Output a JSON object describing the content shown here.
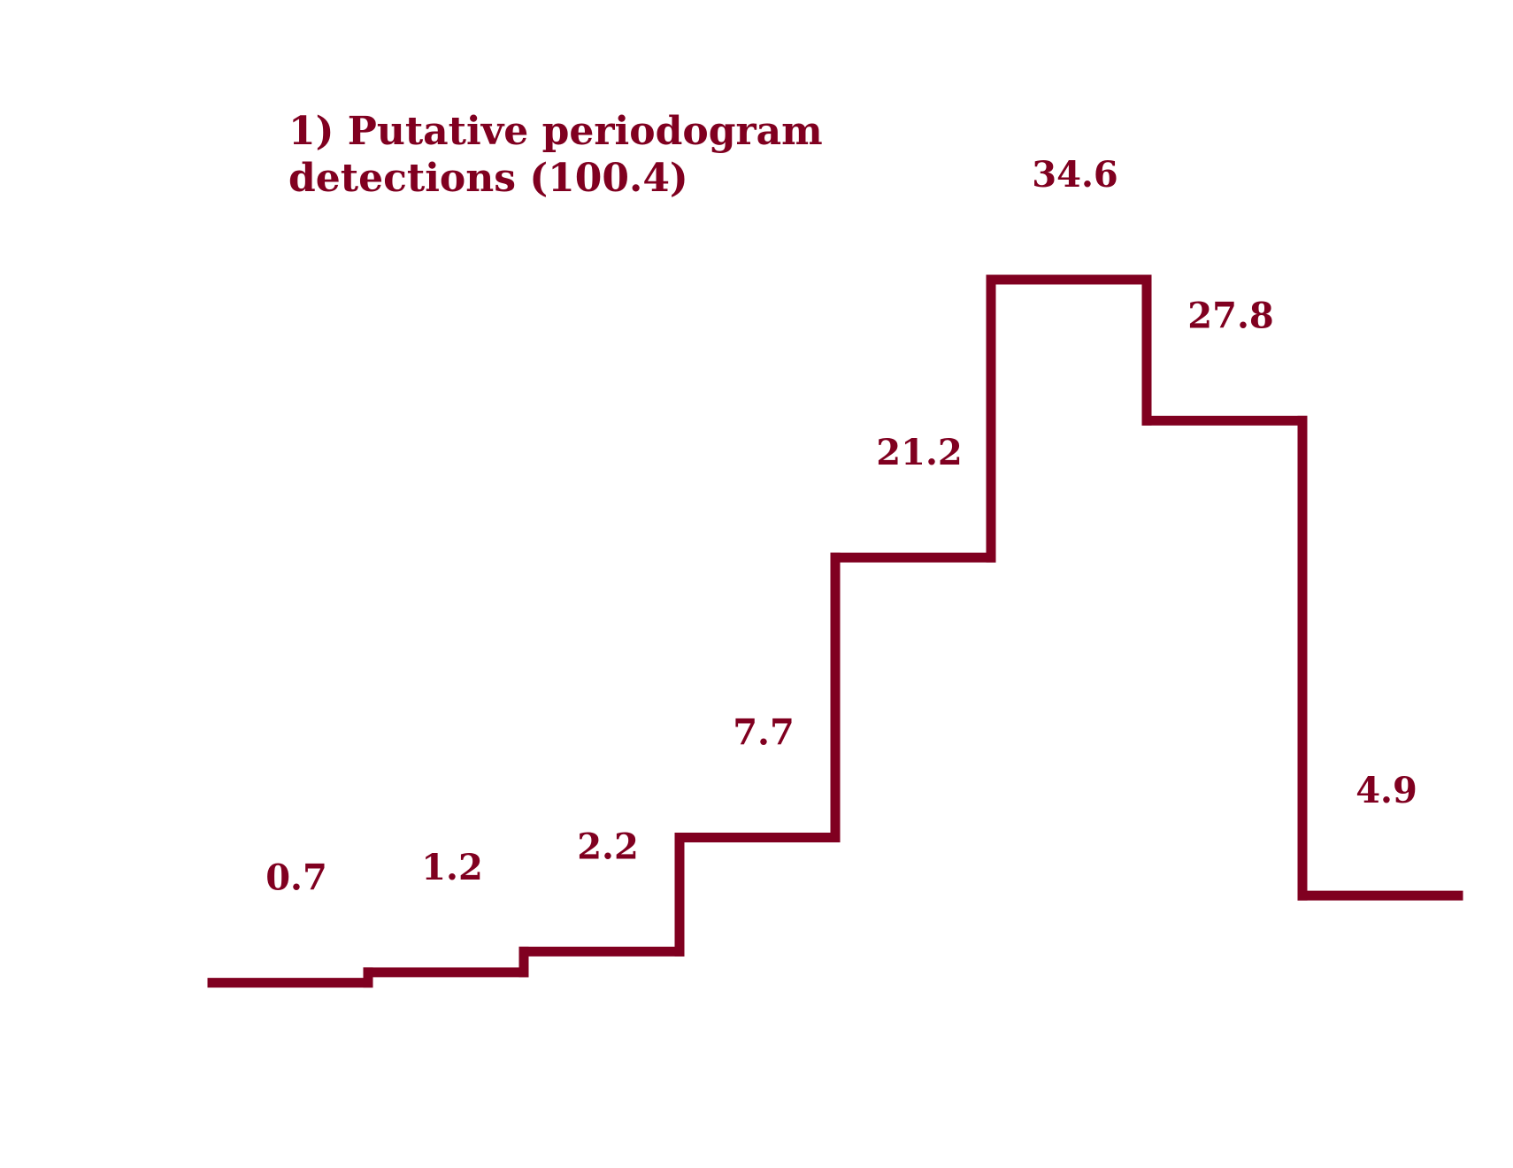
{
  "chart_data": {
    "type": "step",
    "title_lines": [
      "1) Putative periodogram",
      "detections (100.4)"
    ],
    "values": [
      0.7,
      1.2,
      2.2,
      7.7,
      21.2,
      34.6,
      27.8,
      4.9
    ],
    "labels": [
      "0.7",
      "1.2",
      "2.2",
      "7.7",
      "21.2",
      "34.6",
      "27.8",
      "4.9"
    ],
    "ylim": [
      0,
      34.6
    ],
    "grid": false,
    "axes_visible": false,
    "color": "#800020"
  }
}
